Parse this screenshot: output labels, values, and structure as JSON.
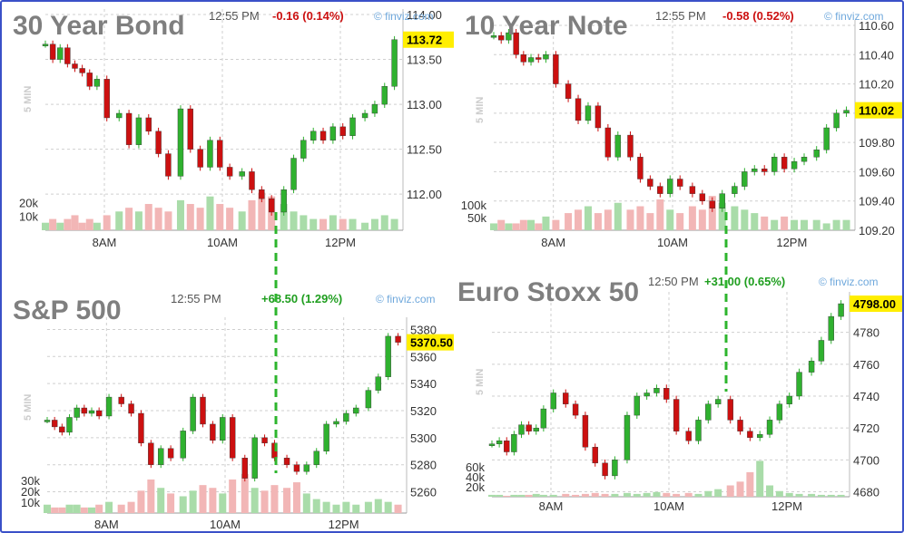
{
  "colors": {
    "up": "#2fb12f",
    "down": "#cc1010",
    "up_volume": "#a9dca9",
    "down_volume": "#f2b6b6",
    "grid": "#cfcfcf",
    "title": "#7f7f7f",
    "connector": "#2db52d",
    "price_tag": "#ffee00",
    "watermark": "#6fa8dc"
  },
  "chart_data": [
    {
      "type": "candlestick",
      "title": "30 Year Bond",
      "time": "12:55 PM",
      "change": "-0.16 (0.14%)",
      "change_color": "#cc1010",
      "watermark": "© finviz.com",
      "timeframe": "5 MIN",
      "price_label": "113.72",
      "last": 113.72,
      "ylim": [
        111.8,
        114.0
      ],
      "y_ticks": [
        "114.00",
        "113.50",
        "113.00",
        "112.50",
        "112.00"
      ],
      "x_ticks": [
        "8AM",
        "10AM",
        "12PM"
      ],
      "volume_ticks": [
        "20k",
        "10k"
      ],
      "volume_ylim": [
        0,
        30000
      ],
      "points": [
        [
          0,
          113.67
        ],
        [
          3,
          113.5
        ],
        [
          6,
          113.63
        ],
        [
          9,
          113.45
        ],
        [
          12,
          113.4
        ],
        [
          15,
          113.35
        ],
        [
          18,
          113.2
        ],
        [
          21,
          113.28
        ],
        [
          25,
          112.85
        ],
        [
          30,
          112.9
        ],
        [
          34,
          112.55
        ],
        [
          38,
          112.85
        ],
        [
          42,
          112.7
        ],
        [
          46,
          112.45
        ],
        [
          50,
          112.2
        ],
        [
          55,
          112.95
        ],
        [
          59,
          112.5
        ],
        [
          63,
          112.3
        ],
        [
          67,
          112.6
        ],
        [
          71,
          112.3
        ],
        [
          75,
          112.2
        ],
        [
          80,
          112.25
        ],
        [
          84,
          112.05
        ],
        [
          88,
          111.95
        ],
        [
          92,
          111.8
        ],
        [
          97,
          112.05
        ],
        [
          101,
          112.4
        ],
        [
          105,
          112.6
        ],
        [
          109,
          112.7
        ],
        [
          113,
          112.6
        ],
        [
          117,
          112.75
        ],
        [
          121,
          112.65
        ],
        [
          125,
          112.85
        ],
        [
          130,
          112.9
        ],
        [
          134,
          113.0
        ],
        [
          138,
          113.2
        ],
        [
          142,
          113.72
        ]
      ],
      "volumes": [
        2,
        3,
        2,
        3,
        4,
        2,
        3,
        2,
        4,
        5,
        6,
        5,
        7,
        6,
        5,
        8,
        7,
        6,
        9,
        7,
        6,
        5,
        8,
        10,
        9,
        7,
        5,
        4,
        3,
        3,
        4,
        3,
        3,
        2,
        3,
        4,
        3
      ]
    },
    {
      "type": "candlestick",
      "title": "10 Year Note",
      "time": "12:55 PM",
      "change": "-0.58 (0.52%)",
      "change_color": "#cc1010",
      "watermark": "© finviz.com",
      "timeframe": "5 MIN",
      "price_label": "110.02",
      "last": 110.02,
      "ylim": [
        109.2,
        110.6
      ],
      "y_ticks": [
        "110.60",
        "110.40",
        "110.20",
        "110.00",
        "109.80",
        "109.60",
        "109.40",
        "109.20"
      ],
      "x_ticks": [
        "8AM",
        "10AM",
        "12PM"
      ],
      "volume_ticks": [
        "100k",
        "50k"
      ],
      "volume_ylim": [
        0,
        150000
      ],
      "points": [
        [
          0,
          110.53
        ],
        [
          3,
          110.5
        ],
        [
          6,
          110.55
        ],
        [
          9,
          110.4
        ],
        [
          12,
          110.35
        ],
        [
          15,
          110.38
        ],
        [
          18,
          110.37
        ],
        [
          21,
          110.4
        ],
        [
          25,
          110.2
        ],
        [
          30,
          110.1
        ],
        [
          34,
          109.95
        ],
        [
          38,
          110.05
        ],
        [
          42,
          109.9
        ],
        [
          46,
          109.7
        ],
        [
          50,
          109.85
        ],
        [
          55,
          109.7
        ],
        [
          59,
          109.55
        ],
        [
          63,
          109.5
        ],
        [
          67,
          109.45
        ],
        [
          71,
          109.55
        ],
        [
          75,
          109.5
        ],
        [
          80,
          109.45
        ],
        [
          84,
          109.4
        ],
        [
          88,
          109.35
        ],
        [
          92,
          109.45
        ],
        [
          97,
          109.5
        ],
        [
          101,
          109.6
        ],
        [
          105,
          109.62
        ],
        [
          109,
          109.6
        ],
        [
          113,
          109.7
        ],
        [
          117,
          109.62
        ],
        [
          121,
          109.67
        ],
        [
          125,
          109.7
        ],
        [
          130,
          109.75
        ],
        [
          134,
          109.9
        ],
        [
          138,
          110.0
        ],
        [
          142,
          110.02
        ]
      ],
      "volumes": [
        2,
        3,
        2,
        2,
        3,
        3,
        2,
        4,
        3,
        5,
        6,
        7,
        5,
        6,
        8,
        6,
        7,
        5,
        9,
        6,
        5,
        7,
        6,
        10,
        8,
        7,
        6,
        5,
        4,
        3,
        4,
        3,
        3,
        3,
        2,
        3,
        3
      ]
    },
    {
      "type": "candlestick",
      "title": "S&P 500",
      "time": "12:55 PM",
      "change": "+68.50 (1.29%)",
      "change_color": "#1f9e1f",
      "watermark": "© finviz.com",
      "timeframe": "5 MIN",
      "price_label": "5370.50",
      "last": 5370.5,
      "ylim": [
        5255,
        5385
      ],
      "y_ticks": [
        "5380",
        "5360",
        "5340",
        "5320",
        "5300",
        "5280",
        "5260"
      ],
      "x_ticks": [
        "8AM",
        "10AM",
        "12PM"
      ],
      "volume_ticks": [
        "30k",
        "20k",
        "10k"
      ],
      "volume_ylim": [
        0,
        40000
      ],
      "points": [
        [
          0,
          5313
        ],
        [
          3,
          5308
        ],
        [
          6,
          5304
        ],
        [
          9,
          5315
        ],
        [
          12,
          5322
        ],
        [
          15,
          5318
        ],
        [
          18,
          5320
        ],
        [
          21,
          5316
        ],
        [
          25,
          5330
        ],
        [
          30,
          5325
        ],
        [
          34,
          5318
        ],
        [
          38,
          5296
        ],
        [
          42,
          5280
        ],
        [
          46,
          5292
        ],
        [
          50,
          5285
        ],
        [
          55,
          5305
        ],
        [
          59,
          5330
        ],
        [
          63,
          5310
        ],
        [
          67,
          5298
        ],
        [
          71,
          5315
        ],
        [
          75,
          5285
        ],
        [
          80,
          5270
        ],
        [
          84,
          5300
        ],
        [
          88,
          5296
        ],
        [
          92,
          5285
        ],
        [
          97,
          5280
        ],
        [
          101,
          5275
        ],
        [
          105,
          5280
        ],
        [
          109,
          5290
        ],
        [
          113,
          5310
        ],
        [
          117,
          5312
        ],
        [
          121,
          5318
        ],
        [
          125,
          5322
        ],
        [
          130,
          5335
        ],
        [
          134,
          5345
        ],
        [
          138,
          5375
        ],
        [
          142,
          5370.5
        ]
      ],
      "volumes": [
        3,
        2,
        2,
        3,
        3,
        2,
        2,
        3,
        4,
        3,
        4,
        8,
        12,
        9,
        7,
        6,
        8,
        10,
        9,
        7,
        12,
        14,
        9,
        8,
        10,
        9,
        11,
        7,
        5,
        4,
        3,
        4,
        3,
        4,
        5,
        4,
        3
      ]
    },
    {
      "type": "candlestick",
      "title": "Euro Stoxx 50",
      "time": "12:50 PM",
      "change": "+31.00 (0.65%)",
      "change_color": "#1f9e1f",
      "watermark": "© finviz.com",
      "timeframe": "5 MIN",
      "price_label": "4798.00",
      "last": 4798,
      "ylim": [
        4678,
        4802
      ],
      "y_ticks": [
        "4780",
        "4760",
        "4740",
        "4720",
        "4700",
        "4680"
      ],
      "x_ticks": [
        "8AM",
        "10AM",
        "12PM"
      ],
      "volume_ticks": [
        "60k",
        "40k",
        "20k"
      ],
      "volume_ylim": [
        0,
        80000
      ],
      "points": [
        [
          0,
          4710
        ],
        [
          3,
          4712
        ],
        [
          6,
          4705
        ],
        [
          9,
          4716
        ],
        [
          12,
          4722
        ],
        [
          15,
          4718
        ],
        [
          18,
          4720
        ],
        [
          21,
          4732
        ],
        [
          25,
          4742
        ],
        [
          30,
          4735
        ],
        [
          34,
          4728
        ],
        [
          38,
          4708
        ],
        [
          42,
          4698
        ],
        [
          46,
          4690
        ],
        [
          50,
          4700
        ],
        [
          55,
          4728
        ],
        [
          59,
          4740
        ],
        [
          63,
          4742
        ],
        [
          67,
          4745
        ],
        [
          71,
          4738
        ],
        [
          75,
          4718
        ],
        [
          80,
          4712
        ],
        [
          84,
          4725
        ],
        [
          88,
          4735
        ],
        [
          92,
          4738
        ],
        [
          97,
          4725
        ],
        [
          101,
          4718
        ],
        [
          105,
          4714
        ],
        [
          109,
          4716
        ],
        [
          113,
          4725
        ],
        [
          117,
          4735
        ],
        [
          121,
          4740
        ],
        [
          125,
          4755
        ],
        [
          130,
          4762
        ],
        [
          134,
          4775
        ],
        [
          138,
          4790
        ],
        [
          142,
          4798
        ]
      ],
      "volumes": [
        2,
        2,
        1,
        2,
        2,
        2,
        3,
        2,
        2,
        3,
        2,
        3,
        4,
        3,
        3,
        4,
        3,
        4,
        5,
        4,
        3,
        4,
        3,
        6,
        8,
        12,
        16,
        26,
        38,
        12,
        6,
        4,
        3,
        3,
        2,
        2,
        2
      ]
    }
  ]
}
